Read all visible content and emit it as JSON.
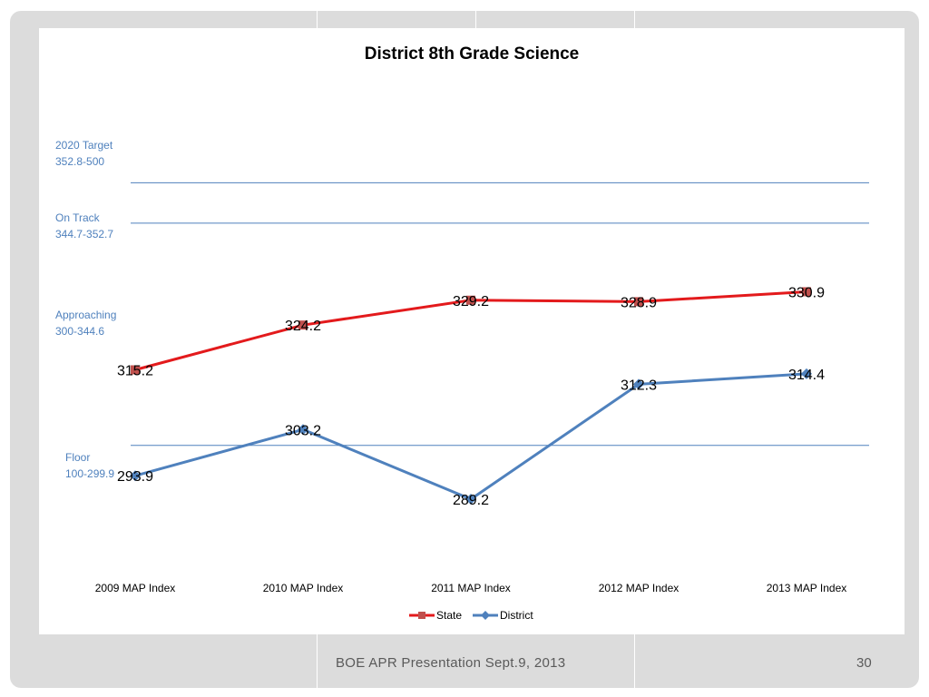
{
  "footer": {
    "text": "BOE APR Presentation Sept.9, 2013",
    "page_number": "30"
  },
  "bands": [
    {
      "name": "2020 Target",
      "range": "352.8-500"
    },
    {
      "name": "On Track",
      "range": "344.7-352.7"
    },
    {
      "name": "Approaching",
      "range": "300-344.6"
    },
    {
      "name": "Floor",
      "range": "100-299.9"
    }
  ],
  "colors": {
    "state": "#e31a1c",
    "state_marker": "#c0504d",
    "district": "#4f81bd",
    "band_line": "#4f81bd",
    "band_text": "#4f81bd"
  },
  "chart_data": {
    "type": "line",
    "title": "District 8th Grade Science",
    "categories": [
      "2009 MAP Index",
      "2010 MAP Index",
      "2011 MAP Index",
      "2012 MAP Index",
      "2013 MAP Index"
    ],
    "series": [
      {
        "name": "State",
        "values": [
          315.2,
          324.2,
          329.2,
          328.9,
          330.9
        ],
        "marker": "square"
      },
      {
        "name": "District",
        "values": [
          293.9,
          303.2,
          289.2,
          312.3,
          314.4
        ],
        "marker": "diamond"
      }
    ],
    "reference_lines": [
      352.8,
      344.7,
      300
    ],
    "legend_position": "bottom",
    "grid": false
  }
}
